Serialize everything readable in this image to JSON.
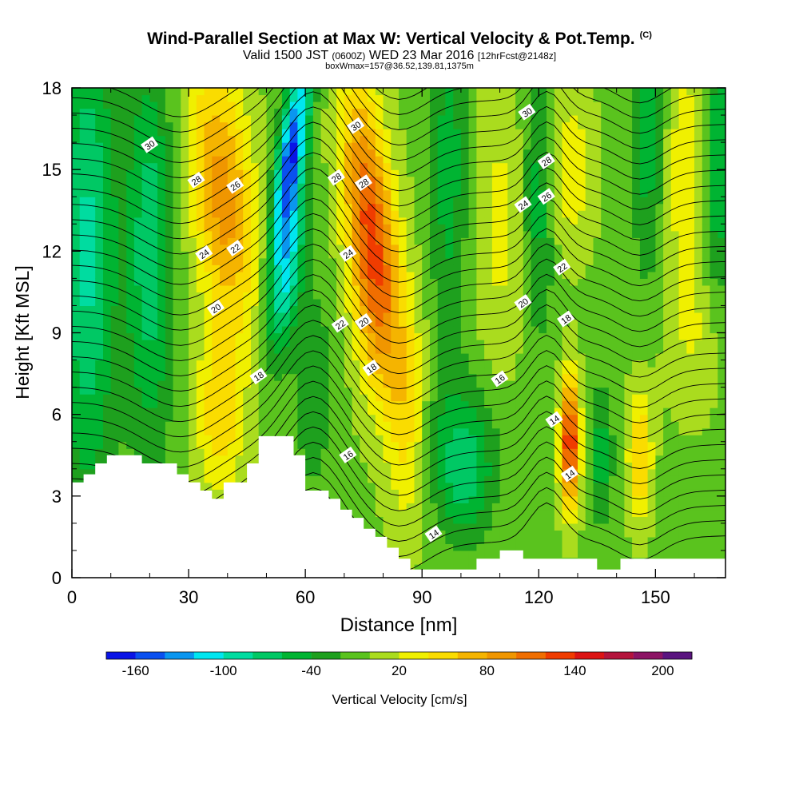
{
  "title": "Wind-Parallel Section at Max W: Vertical Velocity & Pot.Temp.",
  "copyright_mark": "(C)",
  "subtitle": {
    "lead": "Valid 1500 JST",
    "utc": "(0600Z)",
    "date": "WED 23 Mar 2016",
    "run": "[12hrFcst@2148z]"
  },
  "box_note": "boxWmax=157@36.52,139.81,1375m",
  "chart_data": {
    "type": "heatmap",
    "xlabel": "Distance [nm]",
    "ylabel": "Height [Kft MSL]",
    "xlim": [
      0,
      168
    ],
    "ylim": [
      0,
      18
    ],
    "xticks": [
      0,
      30,
      60,
      90,
      120,
      150
    ],
    "yticks": [
      0,
      3,
      6,
      9,
      12,
      15,
      18
    ],
    "colorbar": {
      "label": "Vertical Velocity [cm/s]",
      "tick_labels": [
        "-160",
        "-100",
        "-40",
        "20",
        "80",
        "140",
        "200"
      ],
      "tick_values": [
        -160,
        -100,
        -40,
        20,
        80,
        140,
        200
      ],
      "levels": [
        -180,
        -160,
        -140,
        -120,
        -100,
        -80,
        -60,
        -40,
        -20,
        0,
        20,
        40,
        60,
        80,
        100,
        120,
        140,
        160,
        180,
        200,
        220
      ],
      "colors": [
        "#0a14e6",
        "#0a50f0",
        "#0a96f0",
        "#00e6f0",
        "#00dca0",
        "#00c864",
        "#00b432",
        "#1ea01e",
        "#5ac31e",
        "#aadc1e",
        "#f0f000",
        "#fadc00",
        "#f5b400",
        "#f09600",
        "#f06e00",
        "#f03c00",
        "#dc1414",
        "#b4143c",
        "#8c1464",
        "#5a147f"
      ]
    },
    "vertical_velocity_features_cm_s": [
      {
        "x": 55,
        "y": 15.5,
        "value": -160
      },
      {
        "x": 55,
        "y": 12,
        "value": -100
      },
      {
        "x": 76,
        "y": 14,
        "value": 120
      },
      {
        "x": 40,
        "y": 14,
        "value": 100
      },
      {
        "x": 128,
        "y": 5,
        "value": 140
      },
      {
        "x": 101,
        "y": 3.5,
        "value": -60
      }
    ],
    "potential_temperature_contour_labels": [
      {
        "label": "30",
        "x": 20,
        "y": 15.9
      },
      {
        "label": "28",
        "x": 32,
        "y": 14.6
      },
      {
        "label": "26",
        "x": 42,
        "y": 14.4
      },
      {
        "label": "24",
        "x": 34,
        "y": 11.9
      },
      {
        "label": "22",
        "x": 42,
        "y": 12.1
      },
      {
        "label": "20",
        "x": 37,
        "y": 9.9
      },
      {
        "label": "18",
        "x": 48,
        "y": 7.4
      },
      {
        "label": "30",
        "x": 73,
        "y": 16.6
      },
      {
        "label": "28",
        "x": 68,
        "y": 14.7
      },
      {
        "label": "28",
        "x": 75,
        "y": 14.5
      },
      {
        "label": "24",
        "x": 71,
        "y": 11.9
      },
      {
        "label": "22",
        "x": 69,
        "y": 9.3
      },
      {
        "label": "20",
        "x": 75,
        "y": 9.4
      },
      {
        "label": "18",
        "x": 77,
        "y": 7.7
      },
      {
        "label": "16",
        "x": 71,
        "y": 4.5
      },
      {
        "label": "14",
        "x": 93,
        "y": 1.6
      },
      {
        "label": "30",
        "x": 117,
        "y": 17.1
      },
      {
        "label": "28",
        "x": 122,
        "y": 15.3
      },
      {
        "label": "26",
        "x": 122,
        "y": 14.0
      },
      {
        "label": "24",
        "x": 116,
        "y": 13.7
      },
      {
        "label": "22",
        "x": 126,
        "y": 11.4
      },
      {
        "label": "20",
        "x": 116,
        "y": 10.1
      },
      {
        "label": "18",
        "x": 127,
        "y": 9.5
      },
      {
        "label": "16",
        "x": 110,
        "y": 7.3
      },
      {
        "label": "14",
        "x": 124,
        "y": 5.8
      },
      {
        "label": "14",
        "x": 128,
        "y": 3.8
      }
    ],
    "terrain_profile_kft": [
      [
        0,
        3.5
      ],
      [
        3,
        3.5
      ],
      [
        3,
        3.8
      ],
      [
        6,
        3.8
      ],
      [
        6,
        4.2
      ],
      [
        9,
        4.2
      ],
      [
        9,
        4.5
      ],
      [
        18,
        4.5
      ],
      [
        18,
        4.2
      ],
      [
        27,
        4.2
      ],
      [
        27,
        3.8
      ],
      [
        30,
        3.8
      ],
      [
        30,
        3.5
      ],
      [
        33,
        3.5
      ],
      [
        33,
        3.2
      ],
      [
        36,
        3.2
      ],
      [
        36,
        2.9
      ],
      [
        39,
        2.9
      ],
      [
        39,
        3.5
      ],
      [
        45,
        3.5
      ],
      [
        45,
        4.2
      ],
      [
        48,
        4.2
      ],
      [
        48,
        5.2
      ],
      [
        57,
        5.2
      ],
      [
        57,
        4.5
      ],
      [
        60,
        4.5
      ],
      [
        60,
        3.2
      ],
      [
        63,
        3.2
      ],
      [
        66,
        3.2
      ],
      [
        66,
        2.9
      ],
      [
        69,
        2.9
      ],
      [
        69,
        2.5
      ],
      [
        72,
        2.5
      ],
      [
        72,
        2.2
      ],
      [
        75,
        2.2
      ],
      [
        75,
        1.8
      ],
      [
        78,
        1.8
      ],
      [
        78,
        1.5
      ],
      [
        81,
        1.5
      ],
      [
        81,
        1.1
      ],
      [
        84,
        1.1
      ],
      [
        84,
        0.7
      ],
      [
        87,
        0.7
      ],
      [
        87,
        0.3
      ],
      [
        90,
        0.3
      ],
      [
        104,
        0.3
      ],
      [
        104,
        0.7
      ],
      [
        110,
        0.7
      ],
      [
        110,
        1.0
      ],
      [
        116,
        1.0
      ],
      [
        116,
        0.7
      ],
      [
        135,
        0.7
      ],
      [
        135,
        0.3
      ],
      [
        141,
        0.3
      ],
      [
        141,
        0.7
      ],
      [
        168,
        0.7
      ]
    ]
  }
}
